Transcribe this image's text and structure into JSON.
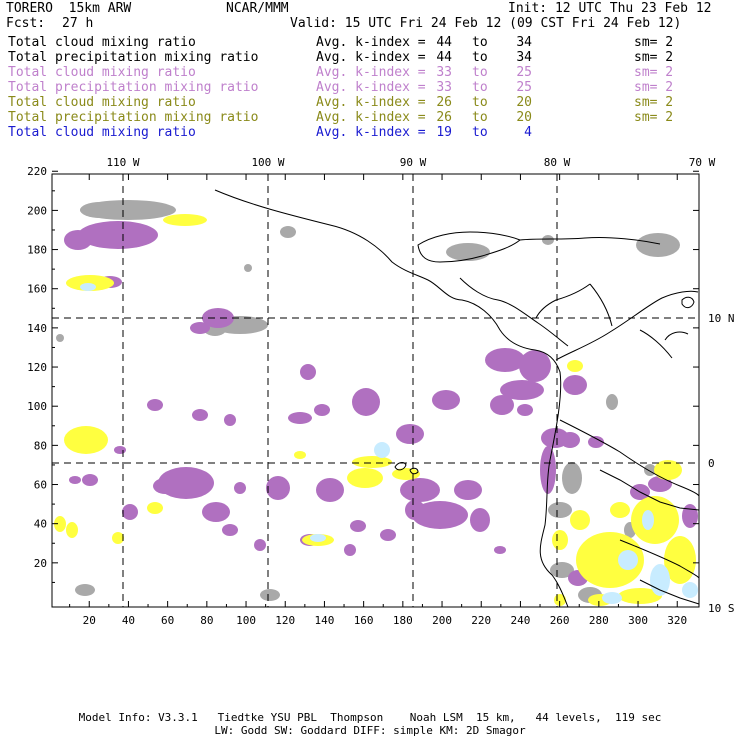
{
  "header": {
    "model": "TORERO  15km ARW",
    "center": "NCAR/MMM",
    "init": "Init: 12 UTC Thu 23 Feb 12",
    "fcst_label": "Fcst:",
    "fcst_value": "27 h",
    "valid": "Valid: 15 UTC Fri 24 Feb 12 (09 CST Fri 24 Feb 12)"
  },
  "legend": [
    {
      "name": "Total cloud mixing ratio",
      "avg": "Avg. k-index =",
      "k1": "44",
      "to": "to",
      "k2": "34",
      "sm": "sm= 2",
      "color": "#000000"
    },
    {
      "name": "Total precipitation mixing ratio",
      "avg": "Avg. k-index =",
      "k1": "44",
      "to": "to",
      "k2": "34",
      "sm": "sm= 2",
      "color": "#000000"
    },
    {
      "name": "Total cloud mixing ratio",
      "avg": "Avg. k-index =",
      "k1": "33",
      "to": "to",
      "k2": "25",
      "sm": "sm= 2",
      "color": "#bf80cc"
    },
    {
      "name": "Total precipitation mixing ratio",
      "avg": "Avg. k-index =",
      "k1": "33",
      "to": "to",
      "k2": "25",
      "sm": "sm= 2",
      "color": "#bf80cc"
    },
    {
      "name": "Total cloud mixing ratio",
      "avg": "Avg. k-index =",
      "k1": "26",
      "to": "to",
      "k2": "20",
      "sm": "sm= 2",
      "color": "#8a8a1a"
    },
    {
      "name": "Total precipitation mixing ratio",
      "avg": "Avg. k-index =",
      "k1": "26",
      "to": "to",
      "k2": "20",
      "sm": "sm= 2",
      "color": "#8a8a1a"
    },
    {
      "name": "Total cloud mixing ratio",
      "avg": "Avg. k-index =",
      "k1": "19",
      "to": "to",
      "k2": "4",
      "sm": "",
      "color": "#1a1ad0"
    }
  ],
  "map": {
    "lon_labels": [
      "110 W",
      "100 W",
      "90 W",
      "80 W",
      "70 W"
    ],
    "lat_labels": [
      "10 N",
      "0",
      "10 S"
    ],
    "x_ticks": [
      "20",
      "40",
      "60",
      "80",
      "100",
      "120",
      "140",
      "160",
      "180",
      "200",
      "220",
      "240",
      "260",
      "280",
      "300",
      "320"
    ],
    "y_ticks": [
      "220",
      "200",
      "180",
      "160",
      "140",
      "120",
      "100",
      "80",
      "60",
      "40",
      "20"
    ],
    "colors": {
      "gray": "#a9a9a9",
      "purple": "#b070c0",
      "yellow": "#ffff40",
      "lightblue": "#c8ecff"
    }
  },
  "footer": {
    "line1": "Model Info: V3.3.1   Tiedtke YSU PBL  Thompson    Noah LSM  15 km,   44 levels,  119 sec",
    "line2": "LW: Godd SW: Goddard DIFF: simple KM: 2D Smagor"
  }
}
